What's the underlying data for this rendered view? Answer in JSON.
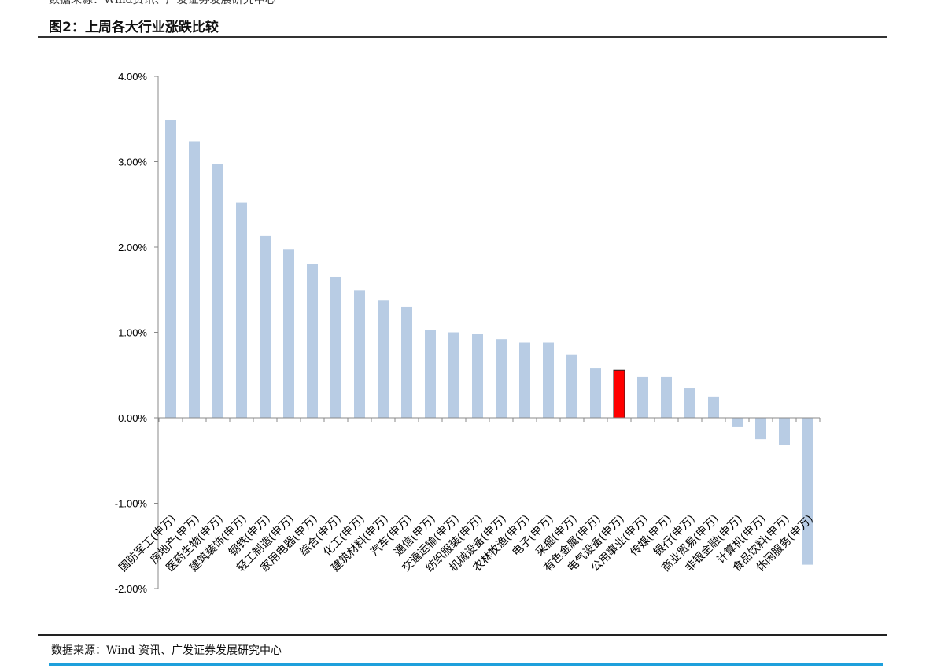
{
  "document": {
    "top_source_text": "数据来源：Wind资讯、广发证券发展研究中心",
    "figure_title": "图2：上周各大行业涨跌比较",
    "source_text": "数据来源：Wind 资讯、广发证券发展研究中心"
  },
  "chart_data": {
    "type": "bar",
    "title": "",
    "xlabel": "",
    "ylabel": "",
    "ylim": [
      -2.0,
      4.0
    ],
    "yticks": [
      -2.0,
      -1.0,
      0.0,
      1.0,
      2.0,
      3.0,
      4.0
    ],
    "ytick_labels": [
      "-2.00%",
      "-1.00%",
      "0.00%",
      "1.00%",
      "2.00%",
      "3.00%",
      "4.00%"
    ],
    "grid": false,
    "legend": "none",
    "bar_color": "#b8cce4",
    "highlight_color": "#ff0000",
    "highlight_category": "电气设备(申万)",
    "categories": [
      "国防军工(申万)",
      "房地产(申万)",
      "医药生物(申万)",
      "建筑装饰(申万)",
      "钢铁(申万)",
      "轻工制造(申万)",
      "家用电器(申万)",
      "综合(申万)",
      "化工(申万)",
      "建筑材料(申万)",
      "汽车(申万)",
      "通信(申万)",
      "交通运输(申万)",
      "纺织服装(申万)",
      "机械设备(申万)",
      "农林牧渔(申万)",
      "电子(申万)",
      "采掘(申万)",
      "有色金属(申万)",
      "电气设备(申万)",
      "公用事业(申万)",
      "传媒(申万)",
      "银行(申万)",
      "商业贸易(申万)",
      "非银金融(申万)",
      "计算机(申万)",
      "食品饮料(申万)",
      "休闲服务(申万)"
    ],
    "values": [
      3.49,
      3.24,
      2.97,
      2.52,
      2.13,
      1.97,
      1.8,
      1.65,
      1.49,
      1.38,
      1.3,
      1.03,
      1.0,
      0.98,
      0.92,
      0.88,
      0.88,
      0.74,
      0.58,
      0.56,
      0.48,
      0.48,
      0.35,
      0.25,
      -0.11,
      -0.25,
      -0.32,
      -1.72
    ]
  }
}
